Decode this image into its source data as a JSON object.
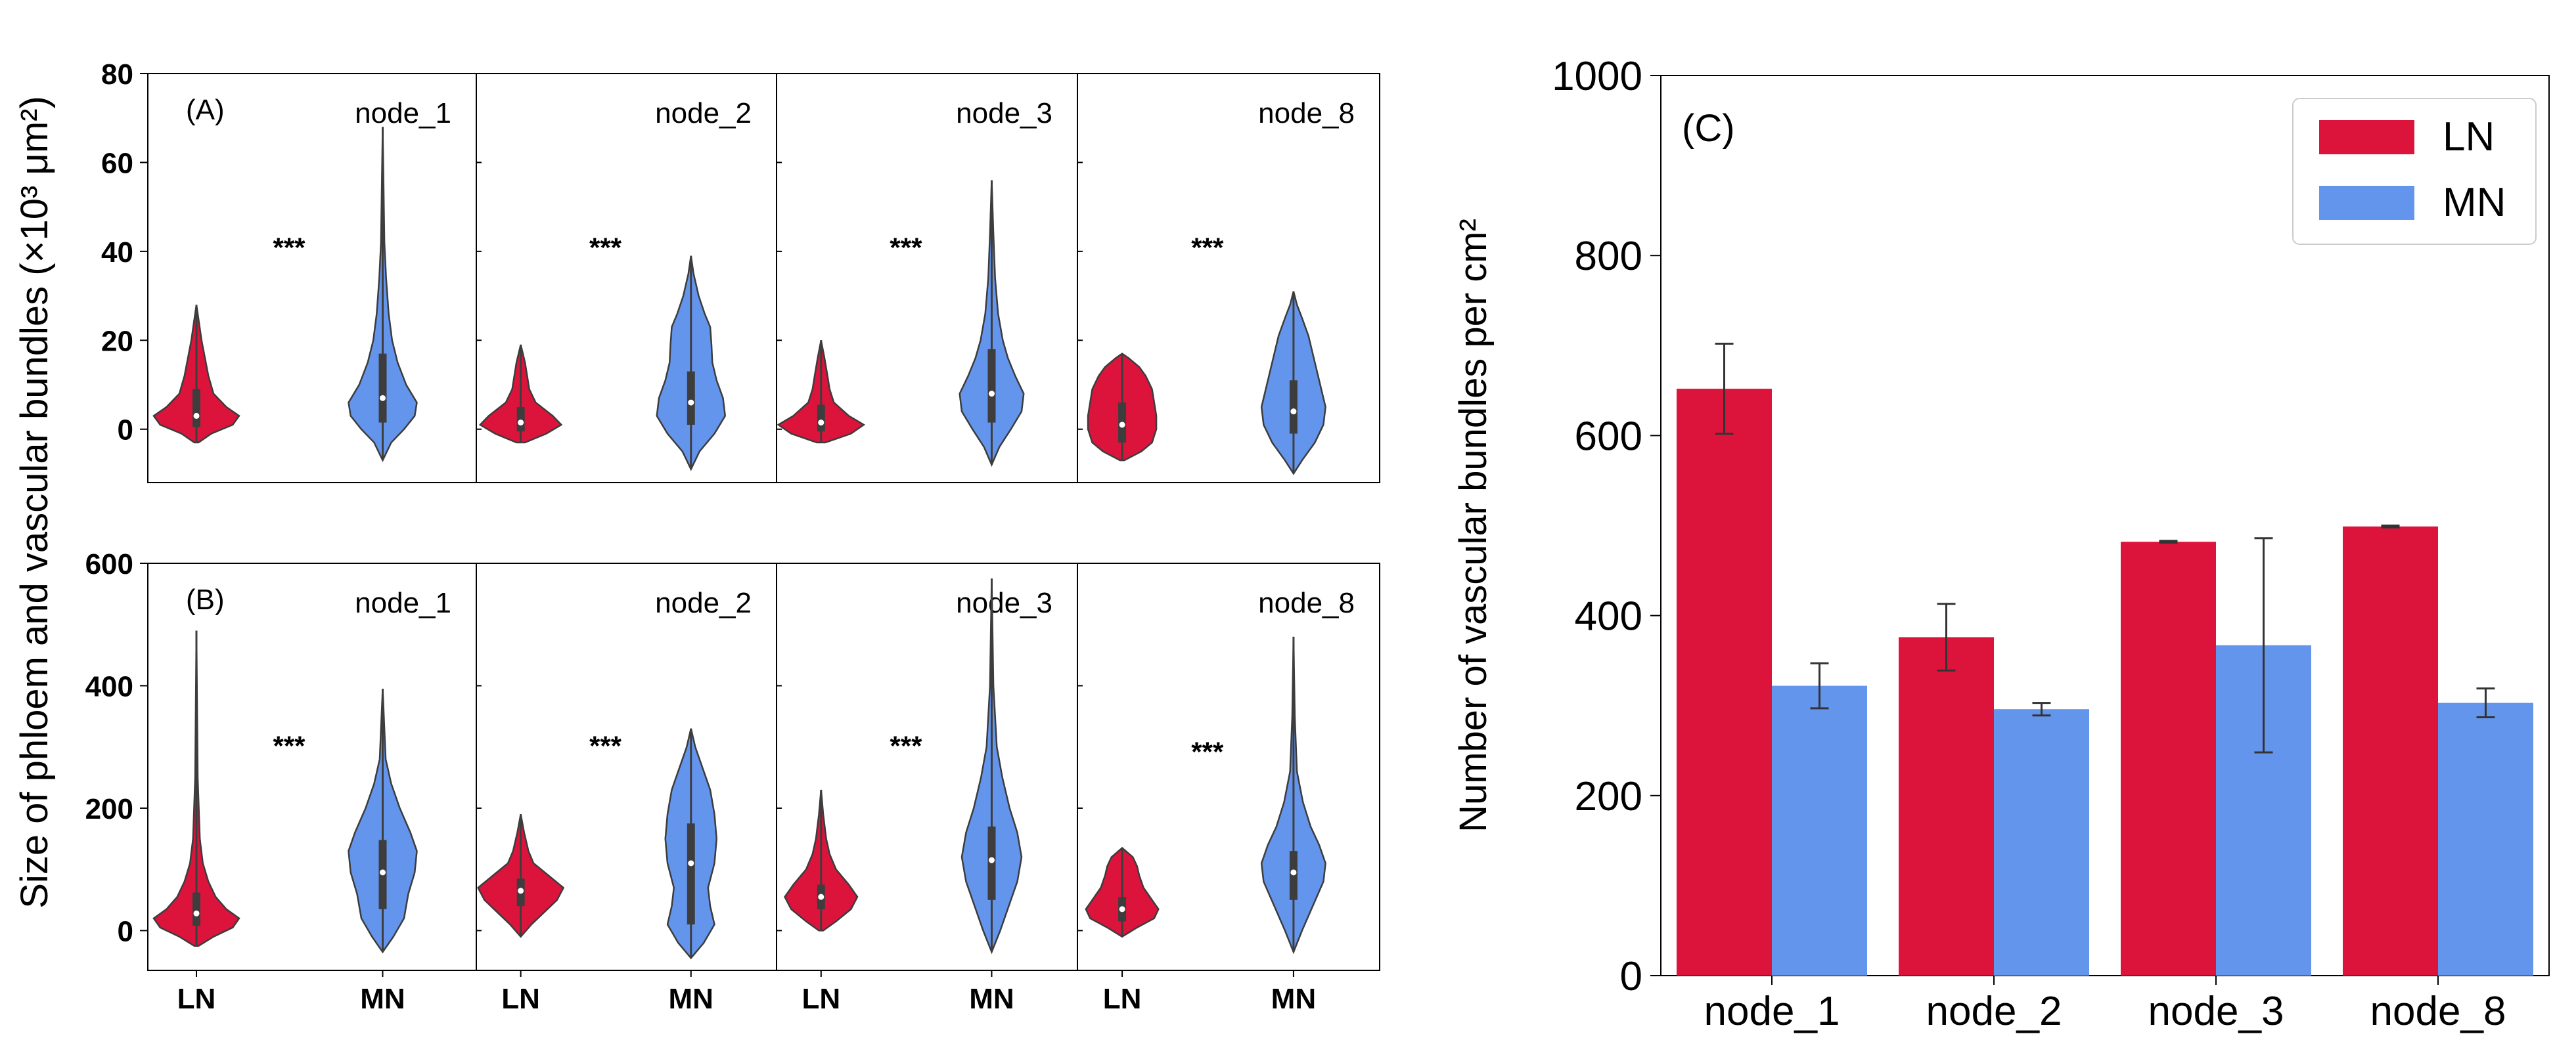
{
  "figure": {
    "shared_ylabel": "Size of phloem and vascular bundles (×10³ μm²)",
    "nodes": [
      "node_1",
      "node_2",
      "node_3",
      "node_8"
    ],
    "groups": [
      "LN",
      "MN"
    ],
    "colors": {
      "LN": "#dc143c",
      "MN": "#6495ed"
    },
    "significance": "***"
  },
  "chart_data": [
    {
      "type": "violin",
      "panel": "(A)",
      "ylim": [
        -12,
        80
      ],
      "yticks": [
        0,
        20,
        40,
        60,
        80
      ],
      "ytick_labels": [
        "0",
        "20",
        "40",
        "60",
        "80"
      ],
      "xticks": [
        "LN",
        "MN"
      ],
      "subplots": [
        {
          "node": "node_1",
          "sig_label": "***",
          "sig_y": 42,
          "LN": {
            "min": -3,
            "max": 28,
            "q1": 0.5,
            "median": 3,
            "q3": 9,
            "shape": [
              [
                -3,
                0.05
              ],
              [
                -1,
                0.35
              ],
              [
                1,
                0.85
              ],
              [
                3,
                1.0
              ],
              [
                5,
                0.7
              ],
              [
                8,
                0.4
              ],
              [
                12,
                0.28
              ],
              [
                16,
                0.2
              ],
              [
                20,
                0.12
              ],
              [
                24,
                0.06
              ],
              [
                28,
                0
              ]
            ]
          },
          "MN": {
            "min": -7,
            "max": 68,
            "q1": 1.5,
            "median": 7,
            "q3": 17,
            "shape": [
              [
                -7,
                0
              ],
              [
                -3,
                0.2
              ],
              [
                0,
                0.5
              ],
              [
                3,
                0.75
              ],
              [
                6,
                0.8
              ],
              [
                10,
                0.55
              ],
              [
                15,
                0.35
              ],
              [
                20,
                0.22
              ],
              [
                26,
                0.14
              ],
              [
                34,
                0.08
              ],
              [
                42,
                0.04
              ],
              [
                55,
                0.02
              ],
              [
                68,
                0
              ]
            ]
          }
        },
        {
          "node": "node_2",
          "sig_label": "***",
          "sig_y": 42,
          "LN": {
            "min": -3,
            "max": 19,
            "q1": -0.5,
            "median": 1.5,
            "q3": 5,
            "shape": [
              [
                -3,
                0.1
              ],
              [
                -1,
                0.6
              ],
              [
                1,
                0.95
              ],
              [
                3,
                0.75
              ],
              [
                6,
                0.35
              ],
              [
                9,
                0.2
              ],
              [
                12,
                0.15
              ],
              [
                15,
                0.1
              ],
              [
                19,
                0
              ]
            ]
          },
          "MN": {
            "min": -9,
            "max": 39,
            "q1": 1,
            "median": 6,
            "q3": 13,
            "shape": [
              [
                -9,
                0
              ],
              [
                -5,
                0.2
              ],
              [
                -1,
                0.55
              ],
              [
                3,
                0.8
              ],
              [
                7,
                0.75
              ],
              [
                11,
                0.6
              ],
              [
                15,
                0.5
              ],
              [
                19,
                0.48
              ],
              [
                23,
                0.45
              ],
              [
                26,
                0.32
              ],
              [
                30,
                0.18
              ],
              [
                35,
                0.06
              ],
              [
                39,
                0
              ]
            ]
          }
        },
        {
          "node": "node_3",
          "sig_label": "***",
          "sig_y": 42,
          "LN": {
            "min": -3,
            "max": 20,
            "q1": -0.5,
            "median": 1.5,
            "q3": 5.5,
            "shape": [
              [
                -3,
                0.1
              ],
              [
                -1,
                0.7
              ],
              [
                1,
                1.0
              ],
              [
                3,
                0.65
              ],
              [
                6,
                0.3
              ],
              [
                9,
                0.2
              ],
              [
                12,
                0.15
              ],
              [
                16,
                0.08
              ],
              [
                20,
                0
              ]
            ]
          },
          "MN": {
            "min": -8,
            "max": 56,
            "q1": 1.5,
            "median": 8,
            "q3": 18,
            "shape": [
              [
                -8,
                0
              ],
              [
                -4,
                0.18
              ],
              [
                0,
                0.45
              ],
              [
                4,
                0.7
              ],
              [
                8,
                0.75
              ],
              [
                12,
                0.55
              ],
              [
                16,
                0.38
              ],
              [
                20,
                0.26
              ],
              [
                26,
                0.15
              ],
              [
                34,
                0.08
              ],
              [
                44,
                0.04
              ],
              [
                56,
                0
              ]
            ]
          }
        },
        {
          "node": "node_8",
          "sig_label": "***",
          "sig_y": 42,
          "LN": {
            "min": -7,
            "max": 17,
            "q1": -3,
            "median": 1,
            "q3": 6,
            "shape": [
              [
                -7,
                0.05
              ],
              [
                -5,
                0.45
              ],
              [
                -3,
                0.7
              ],
              [
                0,
                0.8
              ],
              [
                3,
                0.8
              ],
              [
                6,
                0.75
              ],
              [
                9,
                0.7
              ],
              [
                12,
                0.55
              ],
              [
                14,
                0.4
              ],
              [
                16,
                0.15
              ],
              [
                17,
                0
              ]
            ]
          },
          "MN": {
            "min": -10,
            "max": 31,
            "q1": -1,
            "median": 4,
            "q3": 11,
            "shape": [
              [
                -10,
                0
              ],
              [
                -7,
                0.2
              ],
              [
                -3,
                0.5
              ],
              [
                1,
                0.7
              ],
              [
                5,
                0.75
              ],
              [
                9,
                0.65
              ],
              [
                13,
                0.55
              ],
              [
                17,
                0.45
              ],
              [
                21,
                0.35
              ],
              [
                25,
                0.2
              ],
              [
                28,
                0.08
              ],
              [
                31,
                0
              ]
            ]
          }
        }
      ]
    },
    {
      "type": "violin",
      "panel": "(B)",
      "ylim": [
        -65,
        600
      ],
      "yticks": [
        0,
        200,
        400,
        600
      ],
      "ytick_labels": [
        "0",
        "200",
        "400",
        "600"
      ],
      "xticks": [
        "LN",
        "MN"
      ],
      "subplots": [
        {
          "node": "node_1",
          "sig_label": "***",
          "sig_y": 310,
          "LN": {
            "min": -25,
            "max": 490,
            "q1": 8,
            "median": 28,
            "q3": 62,
            "shape": [
              [
                -25,
                0.05
              ],
              [
                -10,
                0.4
              ],
              [
                5,
                0.85
              ],
              [
                20,
                1.0
              ],
              [
                35,
                0.7
              ],
              [
                55,
                0.45
              ],
              [
                80,
                0.28
              ],
              [
                110,
                0.15
              ],
              [
                150,
                0.08
              ],
              [
                250,
                0.03
              ],
              [
                490,
                0
              ]
            ]
          },
          "MN": {
            "min": -35,
            "max": 395,
            "q1": 35,
            "median": 95,
            "q3": 148,
            "shape": [
              [
                -35,
                0
              ],
              [
                -10,
                0.25
              ],
              [
                20,
                0.5
              ],
              [
                60,
                0.6
              ],
              [
                95,
                0.75
              ],
              [
                130,
                0.8
              ],
              [
                160,
                0.65
              ],
              [
                200,
                0.4
              ],
              [
                240,
                0.2
              ],
              [
                280,
                0.07
              ],
              [
                395,
                0
              ]
            ]
          }
        },
        {
          "node": "node_2",
          "sig_label": "***",
          "sig_y": 310,
          "LN": {
            "min": -10,
            "max": 190,
            "q1": 40,
            "median": 65,
            "q3": 85,
            "shape": [
              [
                -10,
                0
              ],
              [
                10,
                0.25
              ],
              [
                30,
                0.55
              ],
              [
                50,
                0.85
              ],
              [
                70,
                1.0
              ],
              [
                90,
                0.65
              ],
              [
                110,
                0.3
              ],
              [
                130,
                0.18
              ],
              [
                160,
                0.08
              ],
              [
                190,
                0
              ]
            ]
          },
          "MN": {
            "min": -45,
            "max": 330,
            "q1": 10,
            "median": 110,
            "q3": 175,
            "shape": [
              [
                -45,
                0
              ],
              [
                -20,
                0.3
              ],
              [
                10,
                0.55
              ],
              [
                40,
                0.45
              ],
              [
                70,
                0.4
              ],
              [
                110,
                0.55
              ],
              [
                150,
                0.6
              ],
              [
                190,
                0.55
              ],
              [
                230,
                0.45
              ],
              [
                270,
                0.25
              ],
              [
                300,
                0.1
              ],
              [
                330,
                0
              ]
            ]
          }
        },
        {
          "node": "node_3",
          "sig_label": "***",
          "sig_y": 310,
          "LN": {
            "min": 0,
            "max": 230,
            "q1": 35,
            "median": 55,
            "q3": 75,
            "shape": [
              [
                0,
                0.05
              ],
              [
                15,
                0.35
              ],
              [
                35,
                0.7
              ],
              [
                55,
                0.85
              ],
              [
                75,
                0.65
              ],
              [
                100,
                0.35
              ],
              [
                125,
                0.2
              ],
              [
                150,
                0.12
              ],
              [
                190,
                0.05
              ],
              [
                230,
                0
              ]
            ]
          },
          "MN": {
            "min": -35,
            "max": 575,
            "q1": 50,
            "median": 115,
            "q3": 170,
            "shape": [
              [
                -35,
                0
              ],
              [
                0,
                0.2
              ],
              [
                40,
                0.4
              ],
              [
                80,
                0.6
              ],
              [
                120,
                0.7
              ],
              [
                160,
                0.6
              ],
              [
                200,
                0.42
              ],
              [
                250,
                0.25
              ],
              [
                300,
                0.12
              ],
              [
                400,
                0.04
              ],
              [
                575,
                0
              ]
            ]
          }
        },
        {
          "node": "node_8",
          "sig_label": "***",
          "sig_y": 300,
          "LN": {
            "min": -10,
            "max": 135,
            "q1": 15,
            "median": 35,
            "q3": 55,
            "shape": [
              [
                -10,
                0
              ],
              [
                5,
                0.35
              ],
              [
                20,
                0.75
              ],
              [
                35,
                0.85
              ],
              [
                50,
                0.7
              ],
              [
                70,
                0.5
              ],
              [
                90,
                0.4
              ],
              [
                105,
                0.35
              ],
              [
                120,
                0.25
              ],
              [
                135,
                0
              ]
            ]
          },
          "MN": {
            "min": -35,
            "max": 480,
            "q1": 50,
            "median": 95,
            "q3": 130,
            "shape": [
              [
                -35,
                0
              ],
              [
                0,
                0.2
              ],
              [
                40,
                0.45
              ],
              [
                80,
                0.7
              ],
              [
                110,
                0.75
              ],
              [
                140,
                0.6
              ],
              [
                170,
                0.4
              ],
              [
                210,
                0.22
              ],
              [
                260,
                0.08
              ],
              [
                350,
                0.03
              ],
              [
                480,
                0
              ]
            ]
          }
        }
      ]
    },
    {
      "type": "bar",
      "panel": "(C)",
      "categories": [
        "node_1",
        "node_2",
        "node_3",
        "node_8"
      ],
      "series": [
        {
          "name": "LN",
          "values": [
            652,
            376,
            482,
            499
          ],
          "errors": [
            50,
            37,
            1,
            1
          ]
        },
        {
          "name": "MN",
          "values": [
            322,
            296,
            367,
            303
          ],
          "errors": [
            25,
            7,
            119,
            16
          ]
        }
      ],
      "ylabel": "Number of vascular bundles per cm²",
      "ylim": [
        0,
        1000
      ],
      "yticks": [
        0,
        200,
        400,
        600,
        800,
        1000
      ],
      "ytick_labels": [
        "0",
        "200",
        "400",
        "600",
        "800",
        "1000"
      ],
      "legend_position": "top-right"
    }
  ]
}
